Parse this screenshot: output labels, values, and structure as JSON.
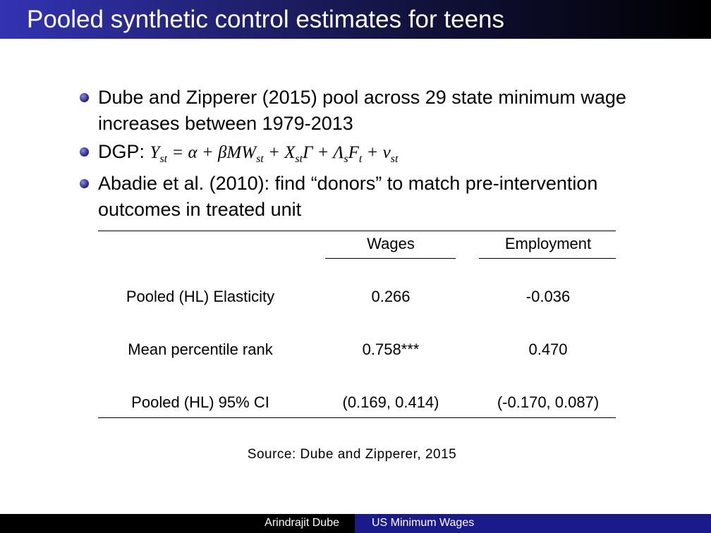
{
  "header": {
    "title": "Pooled synthetic control estimates for teens"
  },
  "bullets": [
    {
      "text": "Dube and Zipperer (2015) pool across 29 state minimum wage increases between 1979-2013"
    },
    {
      "text": "DGP:",
      "formula": [
        {
          "text": "Y",
          "sub": "st"
        },
        {
          "text": " = α + βMW",
          "sub": "st"
        },
        {
          "text": " + X",
          "sub": "st"
        },
        {
          "text": "Γ + Λ",
          "sub": "s"
        },
        {
          "text": "F",
          "sub": "t"
        },
        {
          "text": " + ν",
          "sub": "st"
        }
      ]
    },
    {
      "text": "Abadie et al. (2010): find “donors” to match pre-intervention outcomes in treated unit"
    }
  ],
  "table": {
    "columns": [
      "Wages",
      "Employment"
    ],
    "rows": [
      {
        "label": "Pooled (HL) Elasticity",
        "cells": [
          "0.266",
          "-0.036"
        ]
      },
      {
        "label": "Mean percentile rank",
        "cells": [
          "0.758***",
          "0.470"
        ]
      },
      {
        "label": "Pooled (HL) 95% CI",
        "cells": [
          "(0.169, 0.414)",
          "(-0.170, 0.087)"
        ]
      }
    ]
  },
  "source": "Source: Dube and Zipperer, 2015",
  "footer": {
    "author": "Arindrajit Dube",
    "title": "US Minimum Wages"
  }
}
